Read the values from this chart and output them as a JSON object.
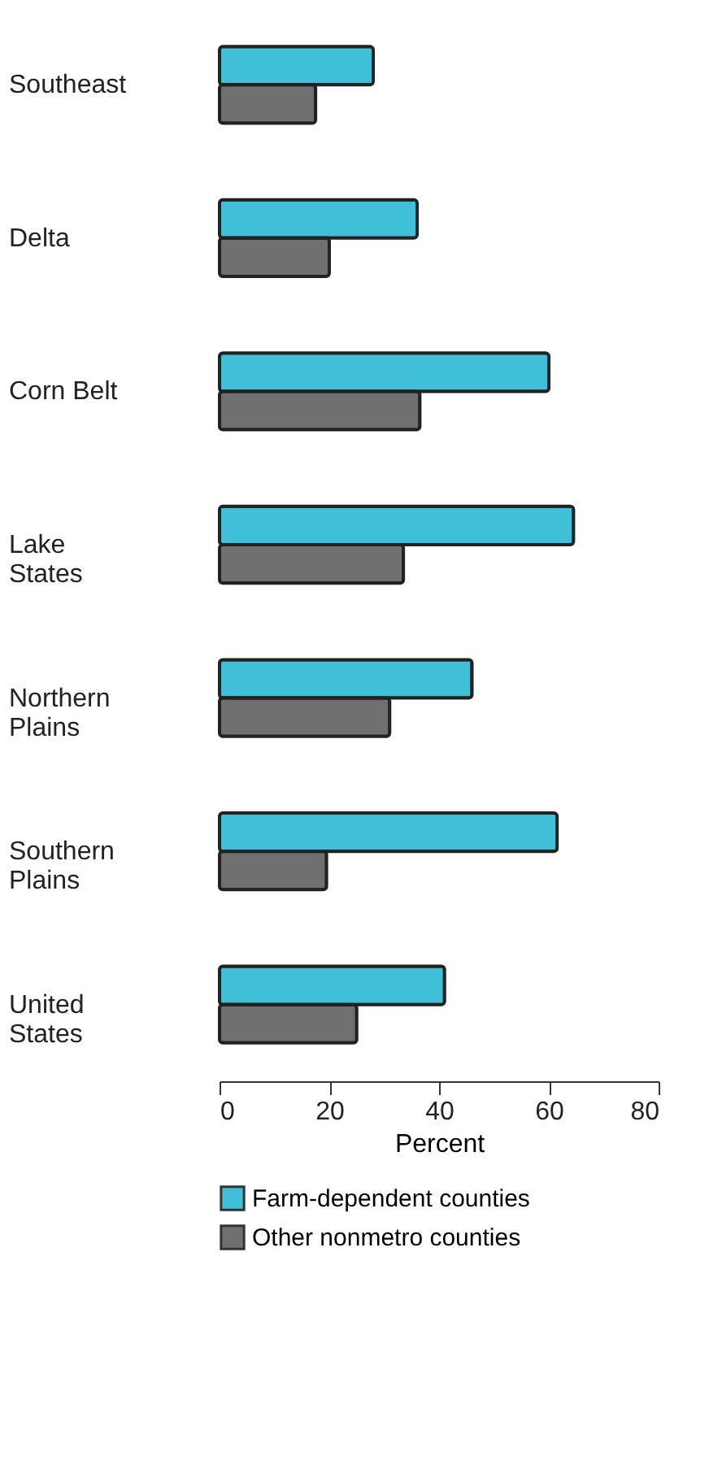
{
  "chart_data": {
    "type": "bar",
    "orientation": "horizontal",
    "categories": [
      "Southeast",
      "Delta",
      "Corn Belt",
      "Lake\nStates",
      "Northern\nPlains",
      "Southern\nPlains",
      "United\nStates"
    ],
    "xlabel": "Percent",
    "xlim": [
      0,
      80
    ],
    "xticks": [
      0,
      20,
      40,
      60,
      80
    ],
    "grid": false,
    "legend": "bottom",
    "series": [
      {
        "name": "Farm-dependent counties",
        "color": "#3fbfd8",
        "values": [
          28,
          36,
          60,
          64.5,
          46,
          61.5,
          41
        ]
      },
      {
        "name": "Other nonmetro counties",
        "color": "#707070",
        "values": [
          17.5,
          20,
          36.5,
          33.5,
          31,
          19.5,
          25
        ]
      }
    ]
  }
}
